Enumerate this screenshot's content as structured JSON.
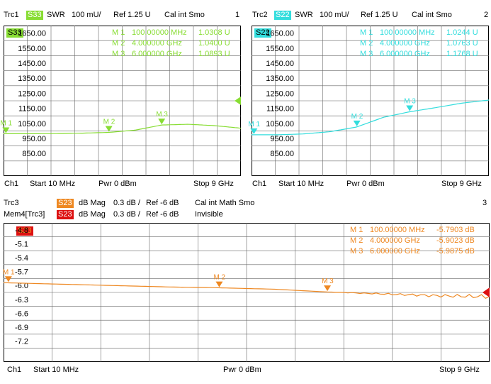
{
  "colors": {
    "s33": "#88dd33",
    "s22": "#33dddd",
    "s23": "#ee8822",
    "mem": "#dd1111",
    "grid": "#555555",
    "frame": "#000000"
  },
  "trc1": {
    "name": "Trc1",
    "trace": "S33",
    "format": "SWR",
    "scale": "100 mU/",
    "ref": "Ref 1.25 U",
    "cal": "Cal int Smo",
    "number": "1",
    "badge": "S33",
    "yticks": [
      "1650.00",
      "1550.00",
      "1450.00",
      "1350.00",
      "1250.00",
      "1150.00",
      "1050.00",
      "950.00",
      "850.00"
    ],
    "markers": [
      {
        "label": "M 1",
        "stim": "100.00000 MHz",
        "value": "1.0308 U"
      },
      {
        "label": "M 2",
        "stim": "4.000000 GHz",
        "value": "1.0400 U"
      },
      {
        "label": "M 3",
        "stim": "6.000000 GHz",
        "value": "1.0893 U"
      }
    ],
    "footer": {
      "ch": "Ch1",
      "start": "Start 10 MHz",
      "pwr": "Pwr 0 dBm",
      "stop": "Stop 9 GHz"
    },
    "mlabels": [
      "M 1",
      "M 2",
      "M 3"
    ]
  },
  "trc2": {
    "name": "Trc2",
    "trace": "S22",
    "format": "SWR",
    "scale": "100 mU/",
    "ref": "Ref 1.25 U",
    "cal": "Cal int Smo",
    "number": "2",
    "badge": "S22",
    "yticks": [
      "1650.00",
      "1550.00",
      "1450.00",
      "1350.00",
      "1250.00",
      "1150.00",
      "1050.00",
      "950.00",
      "850.00"
    ],
    "markers": [
      {
        "label": "M 1",
        "stim": "100.00000 MHz",
        "value": "1.0244 U"
      },
      {
        "label": "M 2",
        "stim": "4.000000 GHz",
        "value": "1.0763 U"
      },
      {
        "label": "M 3",
        "stim": "6.000000 GHz",
        "value": "1.1768 U"
      }
    ],
    "footer": {
      "ch": "Ch1",
      "start": "Start 10 MHz",
      "pwr": "Pwr 0 dBm",
      "stop": "Stop 9 GHz"
    },
    "mlabels": [
      "M 1",
      "M 2",
      "M 3"
    ]
  },
  "trc3": {
    "name": "Trc3",
    "trace": "S23",
    "format": "dB Mag",
    "scale": "0.3 dB /",
    "ref": "Ref -6 dB",
    "cal": "Cal int Math Smo",
    "number": "3",
    "mem_name": "Mem4[Trc3]",
    "mem_trace": "S23",
    "mem_format": "dB Mag",
    "mem_scale": "0.3 dB /",
    "mem_ref": "Ref -6 dB",
    "mem_state": "Invisible",
    "badge": "S23",
    "yticks": [
      "-4.8",
      "-5.1",
      "-5.4",
      "-5.7",
      "-6.0",
      "-6.3",
      "-6.6",
      "-6.9",
      "-7.2"
    ],
    "markers": [
      {
        "label": "M 1",
        "stim": "100.00000 MHz",
        "value": "-5.7903 dB"
      },
      {
        "label": "M 2",
        "stim": "4.000000 GHz",
        "value": "-5.9023 dB"
      },
      {
        "label": "M 3",
        "stim": "6.000000 GHz",
        "value": "-5.9875 dB"
      }
    ],
    "footer": {
      "ch": "Ch1",
      "start": "Start 10 MHz",
      "pwr": "Pwr 0 dBm",
      "stop": "Stop 9 GHz"
    },
    "mlabels": [
      "M 1",
      "M 2",
      "M 3"
    ]
  },
  "chart_data": [
    {
      "type": "line",
      "title": "",
      "xlim": [
        0.01,
        9
      ],
      "ylim": [
        0.75,
        1.75
      ],
      "grid": true,
      "x": [
        0.01,
        1,
        2,
        3,
        4,
        5,
        6,
        7,
        8,
        9
      ],
      "series": [
        {
          "name": "S33",
          "values": [
            1.031,
            1.031,
            1.032,
            1.035,
            1.04,
            1.055,
            1.089,
            1.094,
            1.085,
            1.068
          ]
        }
      ],
      "markers_x": [
        0.1,
        4,
        6
      ],
      "markers_y": [
        1.0308,
        1.04,
        1.0893
      ],
      "ref_arrow_y": 1.25
    },
    {
      "type": "line",
      "title": "",
      "xlim": [
        0.01,
        9
      ],
      "ylim": [
        0.75,
        1.75
      ],
      "grid": true,
      "x": [
        0.01,
        1,
        2,
        3,
        4,
        5,
        6,
        7,
        8,
        9
      ],
      "series": [
        {
          "name": "S22",
          "values": [
            1.024,
            1.024,
            1.03,
            1.045,
            1.076,
            1.14,
            1.177,
            1.205,
            1.235,
            1.255
          ]
        }
      ],
      "markers_x": [
        0.1,
        4,
        6
      ],
      "markers_y": [
        1.0244,
        1.0763,
        1.1768
      ]
    },
    {
      "type": "line",
      "title": "",
      "xlim": [
        0.01,
        9
      ],
      "ylim": [
        -7.5,
        -4.5
      ],
      "grid": true,
      "x": [
        0.01,
        1,
        2,
        3,
        4,
        5,
        6,
        7,
        8,
        9
      ],
      "series": [
        {
          "name": "S23",
          "values": [
            -5.79,
            -5.82,
            -5.85,
            -5.88,
            -5.9,
            -5.93,
            -5.99,
            -6.03,
            -6.07,
            -6.09
          ]
        }
      ],
      "markers_x": [
        0.1,
        4,
        6
      ],
      "markers_y": [
        -5.7903,
        -5.9023,
        -5.9875
      ],
      "ref_arrow_y": -6.0
    }
  ]
}
